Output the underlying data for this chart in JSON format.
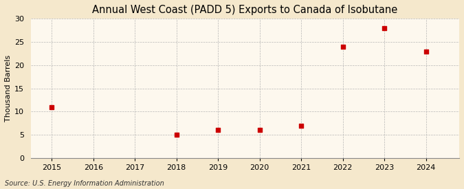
{
  "title": "Annual West Coast (PADD 5) Exports to Canada of Isobutane",
  "ylabel": "Thousand Barrels",
  "source": "Source: U.S. Energy Information Administration",
  "x": [
    2015,
    2018,
    2019,
    2020,
    2021,
    2022,
    2023,
    2024
  ],
  "y": [
    11,
    5,
    6,
    6,
    7,
    24,
    28,
    23
  ],
  "xlim": [
    2014.5,
    2024.8
  ],
  "ylim": [
    0,
    30
  ],
  "yticks": [
    0,
    5,
    10,
    15,
    20,
    25,
    30
  ],
  "xticks": [
    2015,
    2016,
    2017,
    2018,
    2019,
    2020,
    2021,
    2022,
    2023,
    2024
  ],
  "background_color": "#f5e8cc",
  "plot_bg_color": "#fdf8ee",
  "marker_color": "#cc0000",
  "marker": "s",
  "marker_size": 4,
  "grid_color": "#b0b0b0",
  "title_fontsize": 10.5,
  "label_fontsize": 8,
  "tick_fontsize": 8,
  "source_fontsize": 7
}
